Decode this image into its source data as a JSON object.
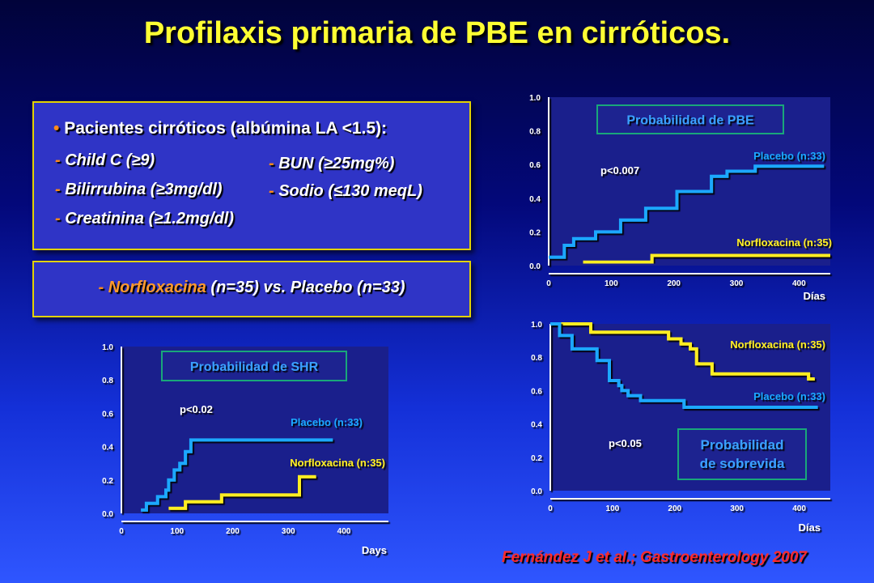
{
  "slide": {
    "title": "Profilaxis primaria de PBE en cirróticos.",
    "criteria_box": {
      "heading": "Pacientes cirróticos (albúmina LA <1.5):",
      "left_items": [
        "Child C (≥9)",
        "Bilirrubina (≥3mg/dl)",
        "Creatinina (≥1.2mg/dl)"
      ],
      "right_items": [
        "BUN (≥25mg%)",
        "Sodio (≤130 meqL)"
      ]
    },
    "comparison_box": {
      "drug": "Norfloxacina",
      "rest": " (n=35) vs. Placebo (n=33)"
    },
    "citation": "Fernández J et al.;  Gastroenterology 2007",
    "colors": {
      "title": "#ffff33",
      "placebo": "#1aa8ff",
      "norfloxacina": "#ffee22",
      "box_border": "#e3d200",
      "label_border": "#19a77a",
      "label_text": "#3aa0ff"
    }
  },
  "chart_data": [
    {
      "id": "pbe",
      "type": "line",
      "title": "Probabilidad de PBE",
      "xlabel": "Días",
      "xlim": [
        0,
        450
      ],
      "ylim": [
        0,
        1
      ],
      "xticks": [
        0,
        100,
        200,
        300,
        400
      ],
      "yticks": [
        "0.0",
        "0.2",
        "0.4",
        "0.6",
        "0.8",
        "1.0"
      ],
      "annotation": "p<0.007",
      "series": [
        {
          "name": "Placebo (n:33)",
          "color": "#1aa8ff",
          "x": [
            0,
            25,
            25,
            40,
            40,
            75,
            75,
            115,
            115,
            155,
            155,
            205,
            205,
            260,
            260,
            285,
            285,
            330,
            330,
            440
          ],
          "y": [
            0.05,
            0.05,
            0.12,
            0.12,
            0.16,
            0.16,
            0.2,
            0.2,
            0.27,
            0.27,
            0.34,
            0.34,
            0.44,
            0.44,
            0.53,
            0.53,
            0.56,
            0.56,
            0.59,
            0.59
          ]
        },
        {
          "name": "Norfloxacina (n:35)",
          "color": "#ffee22",
          "x": [
            55,
            165,
            165,
            450
          ],
          "y": [
            0.02,
            0.02,
            0.06,
            0.06
          ]
        }
      ]
    },
    {
      "id": "shr",
      "type": "line",
      "title": "Probabilidad de SHR",
      "xlabel": "Days",
      "xlim": [
        0,
        480
      ],
      "ylim": [
        0,
        1
      ],
      "xticks": [
        0,
        100,
        200,
        300,
        400
      ],
      "yticks": [
        "0.0",
        "0.2",
        "0.4",
        "0.6",
        "0.8",
        "1.0"
      ],
      "annotation": "p<0.02",
      "series": [
        {
          "name": "Placebo (n:33)",
          "color": "#1aa8ff",
          "x": [
            35,
            45,
            45,
            65,
            65,
            80,
            80,
            85,
            85,
            95,
            95,
            105,
            105,
            115,
            115,
            125,
            125,
            300,
            300,
            380
          ],
          "y": [
            0.02,
            0.02,
            0.06,
            0.06,
            0.1,
            0.1,
            0.14,
            0.14,
            0.2,
            0.2,
            0.26,
            0.26,
            0.3,
            0.3,
            0.37,
            0.37,
            0.44,
            0.44,
            0.44,
            0.44
          ]
        },
        {
          "name": "Norfloxacina (n:35)",
          "color": "#ffee22",
          "x": [
            85,
            115,
            115,
            180,
            180,
            320,
            320,
            350
          ],
          "y": [
            0.03,
            0.03,
            0.07,
            0.07,
            0.11,
            0.11,
            0.22,
            0.22
          ]
        }
      ]
    },
    {
      "id": "survival",
      "type": "line",
      "title": "Probabilidad de sobrevida",
      "xlabel": "Días",
      "xlim": [
        0,
        450
      ],
      "ylim": [
        0,
        1
      ],
      "xticks": [
        0,
        100,
        200,
        300,
        400
      ],
      "yticks": [
        "0.0",
        "0.2",
        "0.4",
        "0.6",
        "0.8",
        "1.0"
      ],
      "annotation": "p<0.05",
      "series": [
        {
          "name": "Norfloxacina (n:35)",
          "color": "#ffee22",
          "x": [
            0,
            65,
            65,
            190,
            190,
            210,
            210,
            225,
            225,
            235,
            235,
            260,
            260,
            300,
            300,
            415,
            415,
            425
          ],
          "y": [
            1.0,
            1.0,
            0.95,
            0.95,
            0.91,
            0.91,
            0.88,
            0.88,
            0.85,
            0.85,
            0.76,
            0.76,
            0.7,
            0.7,
            0.7,
            0.7,
            0.67,
            0.67
          ]
        },
        {
          "name": "Placebo (n:33)",
          "color": "#1aa8ff",
          "x": [
            0,
            15,
            15,
            35,
            35,
            75,
            75,
            95,
            95,
            110,
            110,
            115,
            115,
            125,
            125,
            145,
            145,
            215,
            215,
            430
          ],
          "y": [
            1.0,
            1.0,
            0.93,
            0.93,
            0.85,
            0.85,
            0.78,
            0.78,
            0.66,
            0.66,
            0.63,
            0.63,
            0.6,
            0.6,
            0.57,
            0.57,
            0.54,
            0.54,
            0.5,
            0.5
          ]
        }
      ]
    }
  ]
}
